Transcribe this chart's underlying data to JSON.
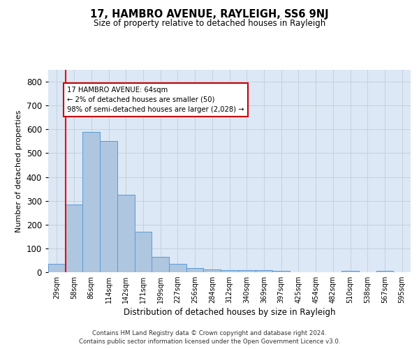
{
  "title": "17, HAMBRO AVENUE, RAYLEIGH, SS6 9NJ",
  "subtitle": "Size of property relative to detached houses in Rayleigh",
  "xlabel": "Distribution of detached houses by size in Rayleigh",
  "ylabel": "Number of detached properties",
  "categories": [
    "29sqm",
    "58sqm",
    "86sqm",
    "114sqm",
    "142sqm",
    "171sqm",
    "199sqm",
    "227sqm",
    "256sqm",
    "284sqm",
    "312sqm",
    "340sqm",
    "369sqm",
    "397sqm",
    "425sqm",
    "454sqm",
    "482sqm",
    "510sqm",
    "538sqm",
    "567sqm",
    "595sqm"
  ],
  "values": [
    35,
    285,
    590,
    550,
    325,
    170,
    65,
    35,
    18,
    12,
    10,
    8,
    8,
    5,
    0,
    0,
    0,
    5,
    0,
    5,
    0
  ],
  "bar_color": "#aec6df",
  "bar_edge_color": "#5b9bd5",
  "grid_color": "#c8d0dc",
  "bg_color": "#dce8f5",
  "red_line_index": 1,
  "annotation_text": "17 HAMBRO AVENUE: 64sqm\n← 2% of detached houses are smaller (50)\n98% of semi-detached houses are larger (2,028) →",
  "annotation_box_color": "#cc0000",
  "ylim": [
    0,
    850
  ],
  "yticks": [
    0,
    100,
    200,
    300,
    400,
    500,
    600,
    700,
    800
  ],
  "footer_line1": "Contains HM Land Registry data © Crown copyright and database right 2024.",
  "footer_line2": "Contains public sector information licensed under the Open Government Licence v3.0."
}
